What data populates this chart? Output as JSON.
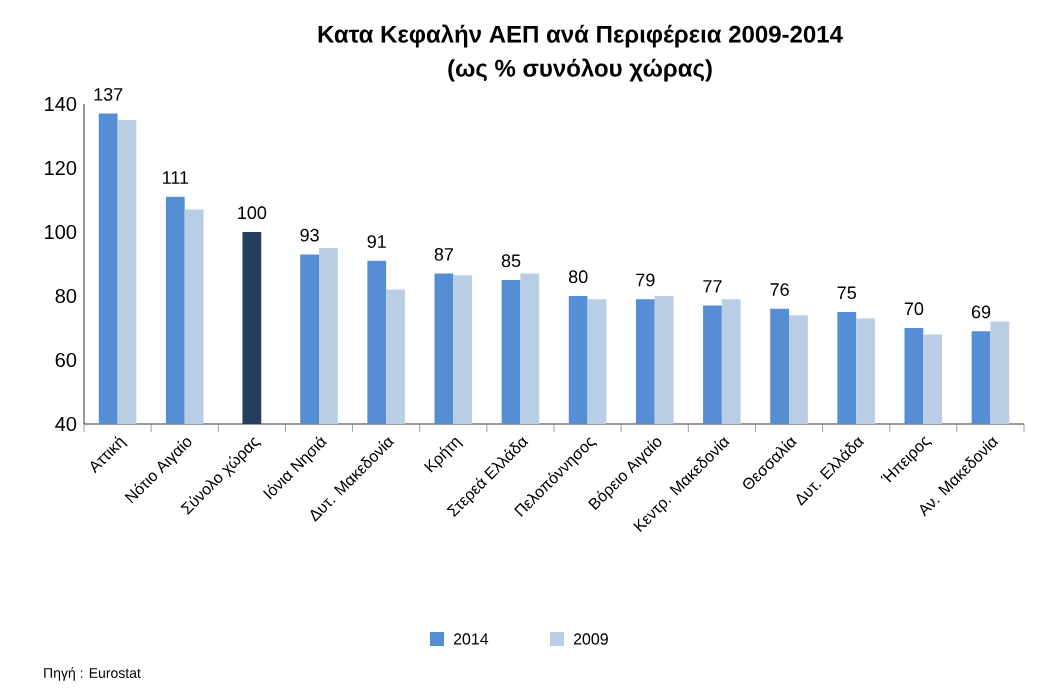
{
  "chart_data": {
    "type": "bar",
    "title": "Κατα Κεφαλήν ΑΕΠ ανά Περιφέρεια 2009-2014",
    "subtitle": "(ως % συνόλου χώρας)",
    "categories": [
      "Αττική",
      "Νότιο Αιγαίο",
      "Σύνολο χώρας",
      "Ιόνια Νησιά",
      "Δυτ. Μακεδονία",
      "Κρήτη",
      "Στερεά Ελλάδα",
      "Πελοπόννησος",
      "Βόρειο Αιγαίο",
      "Κεντρ. Μακεδονία",
      "Θεσσαλία",
      "Δυτ. Ελλάδα",
      "Ήπειρος",
      "Αν. Μακεδονία"
    ],
    "series": [
      {
        "name": "2014",
        "color": "#558ed5",
        "colors": [
          "#558ed5",
          "#558ed5",
          "#243f60",
          "#558ed5",
          "#558ed5",
          "#558ed5",
          "#558ed5",
          "#558ed5",
          "#558ed5",
          "#558ed5",
          "#558ed5",
          "#558ed5",
          "#558ed5",
          "#558ed5"
        ],
        "values": [
          137,
          111,
          100,
          93,
          91,
          87,
          85,
          80,
          79,
          77,
          76,
          75,
          70,
          69
        ],
        "value_labels": [
          "137",
          "111",
          "100",
          "93",
          "91",
          "87",
          "85",
          "80",
          "79",
          "77",
          "76",
          "75",
          "70",
          "69"
        ]
      },
      {
        "name": "2009",
        "color": "#b9cde5",
        "values": [
          135,
          107,
          null,
          95,
          82,
          86.5,
          87,
          79,
          80,
          79,
          74,
          73,
          68,
          72
        ]
      }
    ],
    "ylim": [
      40,
      140
    ],
    "yticks": [
      40,
      60,
      80,
      100,
      120,
      140
    ],
    "grid": false,
    "legend": "bottom",
    "annotations": [
      "Πηγή : Eurostat"
    ]
  }
}
